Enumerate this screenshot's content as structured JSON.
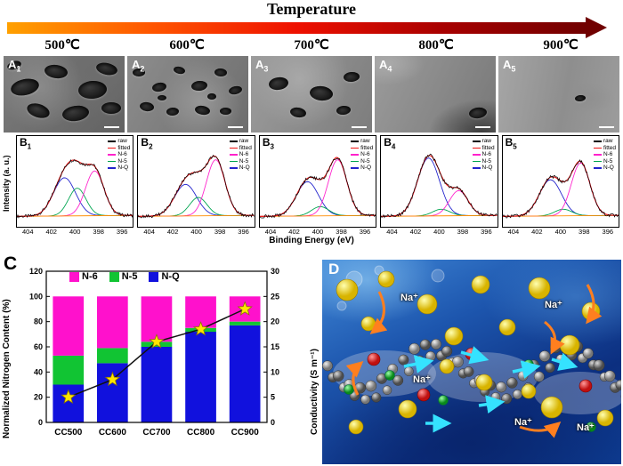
{
  "header": {
    "title": "Temperature",
    "temps": [
      "500℃",
      "600℃",
      "700℃",
      "800℃",
      "900℃"
    ],
    "arrow_colors": [
      "#ffa000",
      "#ff5500",
      "#ee1000",
      "#a80000",
      "#700000"
    ]
  },
  "sem": {
    "panels": [
      {
        "letter": "A",
        "sub": "1"
      },
      {
        "letter": "A",
        "sub": "2"
      },
      {
        "letter": "A",
        "sub": "3"
      },
      {
        "letter": "A",
        "sub": "4"
      },
      {
        "letter": "A",
        "sub": "5"
      }
    ]
  },
  "xps": {
    "ylabel": "Intensity (a. u.)",
    "xlabel": "Binding Energy (eV)",
    "xticks": [
      "404",
      "402",
      "400",
      "398",
      "396"
    ],
    "legend": [
      {
        "label": "raw",
        "color": "#000000"
      },
      {
        "label": "fitted",
        "color": "#ee1111"
      },
      {
        "label": "N-6",
        "color": "#ff22cc"
      },
      {
        "label": "N-5",
        "color": "#00a550"
      },
      {
        "label": "N-Q",
        "color": "#2222cc"
      }
    ],
    "baseline_color": "#ff8c00",
    "peak_centers": {
      "n6": 398.3,
      "n5": 399.8,
      "nq": 400.9
    },
    "panels": [
      {
        "letter": "B",
        "sub": "1",
        "peaks": {
          "n6": 0.68,
          "n5": 0.42,
          "nq": 0.58
        }
      },
      {
        "letter": "B",
        "sub": "2",
        "peaks": {
          "n6": 0.85,
          "n5": 0.28,
          "nq": 0.48
        }
      },
      {
        "letter": "B",
        "sub": "3",
        "peaks": {
          "n6": 0.85,
          "n5": 0.14,
          "nq": 0.52
        }
      },
      {
        "letter": "B",
        "sub": "4",
        "peaks": {
          "n6": 0.38,
          "n5": 0.1,
          "nq": 0.88
        }
      },
      {
        "letter": "B",
        "sub": "5",
        "peaks": {
          "n6": 0.8,
          "n5": 0.1,
          "nq": 0.55
        }
      }
    ]
  },
  "chart_data": {
    "type": "bar",
    "stacked": true,
    "panel_label": "C",
    "categories": [
      "CC500",
      "CC600",
      "CC700",
      "CC800",
      "CC900"
    ],
    "series": [
      {
        "name": "N-Q",
        "color": "#1111dd",
        "values": [
          30,
          47,
          60,
          72,
          77
        ]
      },
      {
        "name": "N-5",
        "color": "#11c433",
        "values": [
          23,
          12,
          4,
          3,
          3
        ]
      },
      {
        "name": "N-6",
        "color": "#ff11cc",
        "values": [
          47,
          41,
          36,
          25,
          20
        ]
      }
    ],
    "line_series": {
      "name": "Conductivity",
      "values": [
        5,
        8.5,
        16,
        18.5,
        22.5
      ],
      "marker": "star",
      "marker_color": "#ffe600",
      "line_color": "#111111"
    },
    "legend": [
      {
        "label": "N-6",
        "color": "#ff11cc"
      },
      {
        "label": "N-5",
        "color": "#11c433"
      },
      {
        "label": "N-Q",
        "color": "#1111dd"
      }
    ],
    "ylabel_left": "Normalized Nitrogen Content (%)",
    "ylabel_right": "Conductivity (S m⁻¹)",
    "ylim_left": [
      0,
      120
    ],
    "ylim_right": [
      0,
      30
    ],
    "yticks_left": [
      0,
      20,
      40,
      60,
      80,
      100,
      120
    ],
    "yticks_right": [
      0,
      5,
      10,
      15,
      20,
      25,
      30
    ],
    "grid": false,
    "legend_position": "top-inside"
  },
  "illustration": {
    "panel_label": "D",
    "ion_labels": [
      "Na⁺",
      "Na⁺",
      "Na⁺",
      "Na⁺",
      "Na⁺"
    ]
  }
}
